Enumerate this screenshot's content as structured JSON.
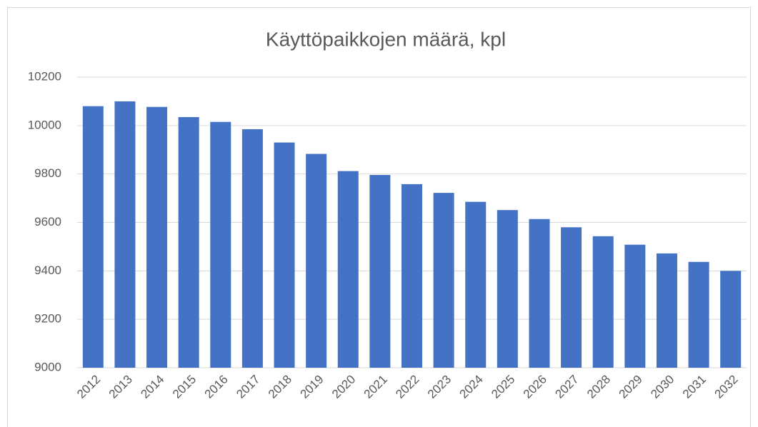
{
  "chart_data": {
    "type": "bar",
    "title": "Käyttöpaikkojen määrä, kpl",
    "categories": [
      "2012",
      "2013",
      "2014",
      "2015",
      "2016",
      "2017",
      "2018",
      "2019",
      "2020",
      "2021",
      "2022",
      "2023",
      "2024",
      "2025",
      "2026",
      "2027",
      "2028",
      "2029",
      "2030",
      "2031",
      "2032"
    ],
    "values": [
      10080,
      10100,
      10077,
      10035,
      10015,
      9985,
      9930,
      9883,
      9812,
      9796,
      9758,
      9722,
      9685,
      9651,
      9614,
      9580,
      9543,
      9508,
      9472,
      9437,
      9400
    ],
    "color": "#4472c4",
    "ylim": [
      9000,
      10200
    ],
    "yticks": [
      9000,
      9200,
      9400,
      9600,
      9800,
      10000,
      10200
    ],
    "grid": true
  }
}
